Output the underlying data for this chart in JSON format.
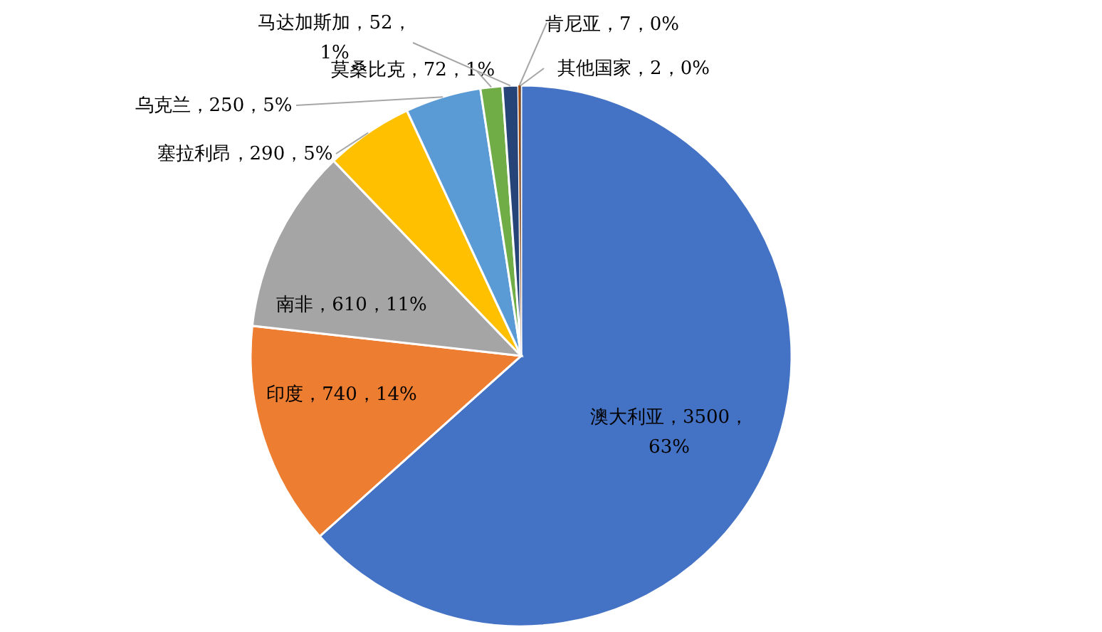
{
  "chart_data": {
    "type": "pie",
    "categories": [
      "澳大利亚",
      "印度",
      "南非",
      "塞拉利昂",
      "乌克兰",
      "莫桑比克",
      "马达加斯加",
      "肯尼亚",
      "其他国家"
    ],
    "values": [
      3500,
      740,
      610,
      290,
      250,
      72,
      52,
      7,
      2
    ],
    "colors": [
      "#4472c4",
      "#ed7d31",
      "#a5a5a5",
      "#ffc000",
      "#5b9bd5",
      "#70ad47",
      "#264478",
      "#9e480e",
      "#636363"
    ],
    "value_labels": [
      "3500，63%",
      "740，14%",
      "610，11%",
      "290，5%",
      "250，5%",
      "72，1%",
      "52，1%",
      "7，0%",
      "2，0%"
    ]
  }
}
